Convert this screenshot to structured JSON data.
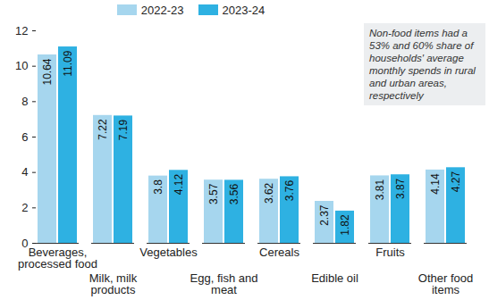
{
  "chart_data": {
    "type": "bar",
    "categories": [
      "Beverages, processed food",
      "Milk, milk products",
      "Vegetables",
      "Egg, fish and meat",
      "Cereals",
      "Edible oil",
      "Fruits",
      "Other food items"
    ],
    "series": [
      {
        "name": "2022-23",
        "color": "#a6d6ee",
        "values": [
          10.64,
          7.22,
          3.8,
          3.57,
          3.62,
          2.37,
          3.81,
          4.14
        ]
      },
      {
        "name": "2023-24",
        "color": "#2eb1e2",
        "values": [
          11.09,
          7.19,
          4.12,
          3.56,
          3.76,
          1.82,
          3.87,
          4.27
        ]
      }
    ],
    "ylim": [
      0,
      12
    ],
    "yticks": [
      0,
      2,
      4,
      6,
      8,
      10,
      12
    ],
    "data_labels": true,
    "legend": "top",
    "annotation": "Non-food items had a 53% and 60% share of households' average monthly spends in rural and urban areas, respectively"
  }
}
